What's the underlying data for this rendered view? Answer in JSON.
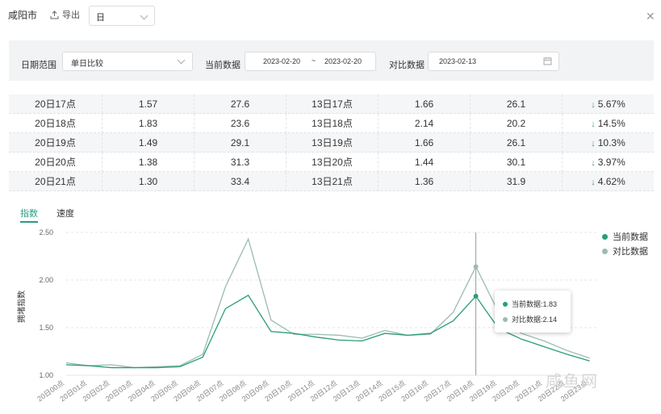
{
  "header": {
    "city": "咸阳市",
    "export_label": "导出",
    "period_select": "日"
  },
  "filter": {
    "date_range_label": "日期范围",
    "date_range_value": "单日比较",
    "current_label": "当前数据",
    "current_start": "2023-02-20",
    "current_sep": "~",
    "current_end": "2023-02-20",
    "compare_label": "对比数据",
    "compare_date": "2023-02-13"
  },
  "table": {
    "rows": [
      [
        "20日17点",
        "1.57",
        "27.6",
        "13日17点",
        "1.66",
        "26.1",
        "5.67%"
      ],
      [
        "20日18点",
        "1.83",
        "23.6",
        "13日18点",
        "2.14",
        "20.2",
        "14.5%"
      ],
      [
        "20日19点",
        "1.49",
        "29.1",
        "13日19点",
        "1.66",
        "26.1",
        "10.3%"
      ],
      [
        "20日20点",
        "1.38",
        "31.3",
        "13日20点",
        "1.44",
        "30.1",
        "3.97%"
      ],
      [
        "20日21点",
        "1.30",
        "33.4",
        "13日21点",
        "1.36",
        "31.9",
        "4.62%"
      ]
    ]
  },
  "tabs": {
    "index_label": "指数",
    "speed_label": "速度"
  },
  "chart_data": {
    "type": "line",
    "ylabel": "拥堵指数",
    "ylim": [
      1.0,
      2.5
    ],
    "yticks": [
      "1.00",
      "1.50",
      "2.00",
      "2.50"
    ],
    "categories": [
      "20日00点",
      "20日01点",
      "20日02点",
      "20日03点",
      "20日04点",
      "20日05点",
      "20日06点",
      "20日07点",
      "20日08点",
      "20日09点",
      "20日10点",
      "20日11点",
      "20日12点",
      "20日13点",
      "20日14点",
      "20日15点",
      "20日16点",
      "20日17点",
      "20日18点",
      "20日19点",
      "20日20点",
      "20日21点",
      "20日22点",
      "20日23点"
    ],
    "series": [
      {
        "name": "当前数据",
        "color": "#2a9c7c",
        "values": [
          1.11,
          1.1,
          1.08,
          1.08,
          1.08,
          1.09,
          1.19,
          1.7,
          1.84,
          1.46,
          1.44,
          1.4,
          1.37,
          1.36,
          1.44,
          1.42,
          1.44,
          1.57,
          1.83,
          1.49,
          1.38,
          1.3,
          1.22,
          1.15
        ]
      },
      {
        "name": "对比数据",
        "color": "#9bbcae",
        "values": [
          1.13,
          1.1,
          1.11,
          1.08,
          1.09,
          1.1,
          1.22,
          1.93,
          2.43,
          1.58,
          1.43,
          1.43,
          1.42,
          1.39,
          1.47,
          1.42,
          1.43,
          1.66,
          2.14,
          1.66,
          1.44,
          1.36,
          1.26,
          1.18
        ]
      }
    ],
    "legend_position": "top-right",
    "highlight_index": 18,
    "tooltip": {
      "current": "当前数据:1.83",
      "compare": "对比数据:2.14"
    }
  },
  "watermark": "咸鱼网",
  "colors": {
    "accent": "#2a9c84",
    "down": "#4a9a7a"
  }
}
